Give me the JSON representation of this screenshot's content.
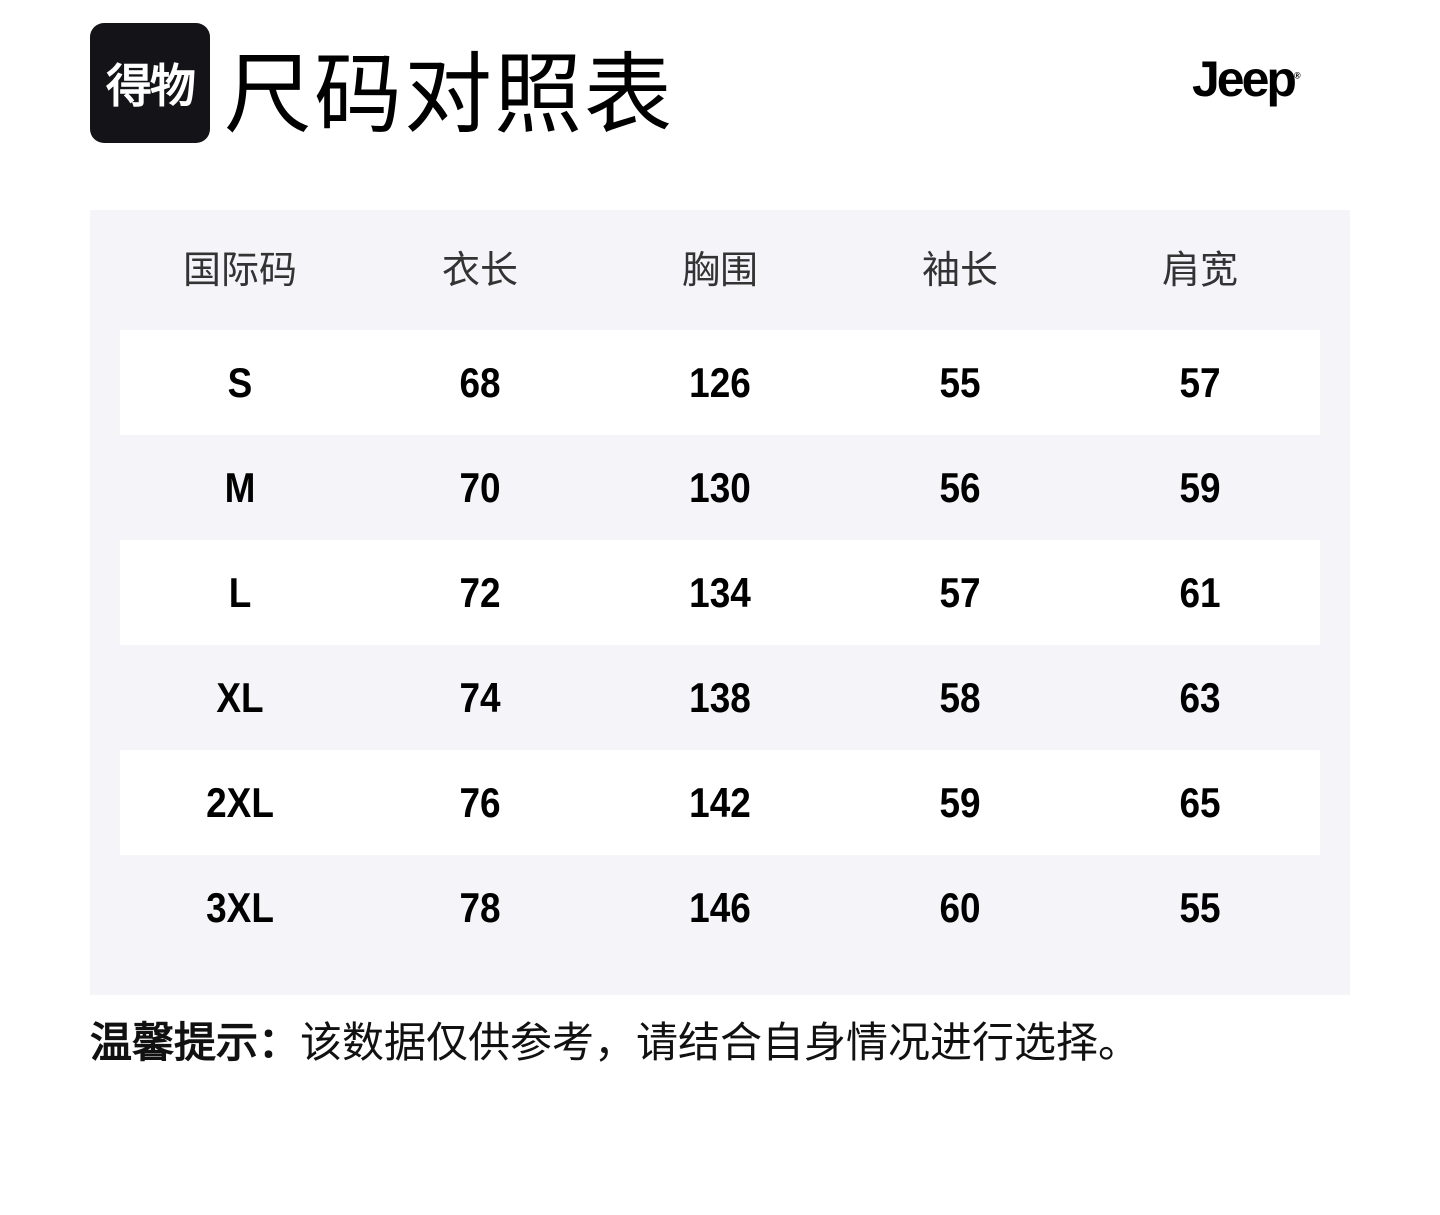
{
  "header": {
    "app_logo": "得物",
    "title": "尺码对照表",
    "brand_logo": "Jeep"
  },
  "table": {
    "columns": [
      "国际码",
      "衣长",
      "胸围",
      "袖长",
      "肩宽"
    ],
    "rows": [
      [
        "S",
        "68",
        "126",
        "55",
        "57"
      ],
      [
        "M",
        "70",
        "130",
        "56",
        "59"
      ],
      [
        "L",
        "72",
        "134",
        "57",
        "61"
      ],
      [
        "XL",
        "74",
        "138",
        "58",
        "63"
      ],
      [
        "2XL",
        "76",
        "142",
        "59",
        "65"
      ],
      [
        "3XL",
        "78",
        "146",
        "60",
        "55"
      ]
    ]
  },
  "note": {
    "label": "温馨提示：",
    "text": "该数据仅供参考，请结合自身情况进行选择。"
  },
  "colors": {
    "table_bg": "#f4f4f9",
    "logo_bg": "#141418"
  }
}
